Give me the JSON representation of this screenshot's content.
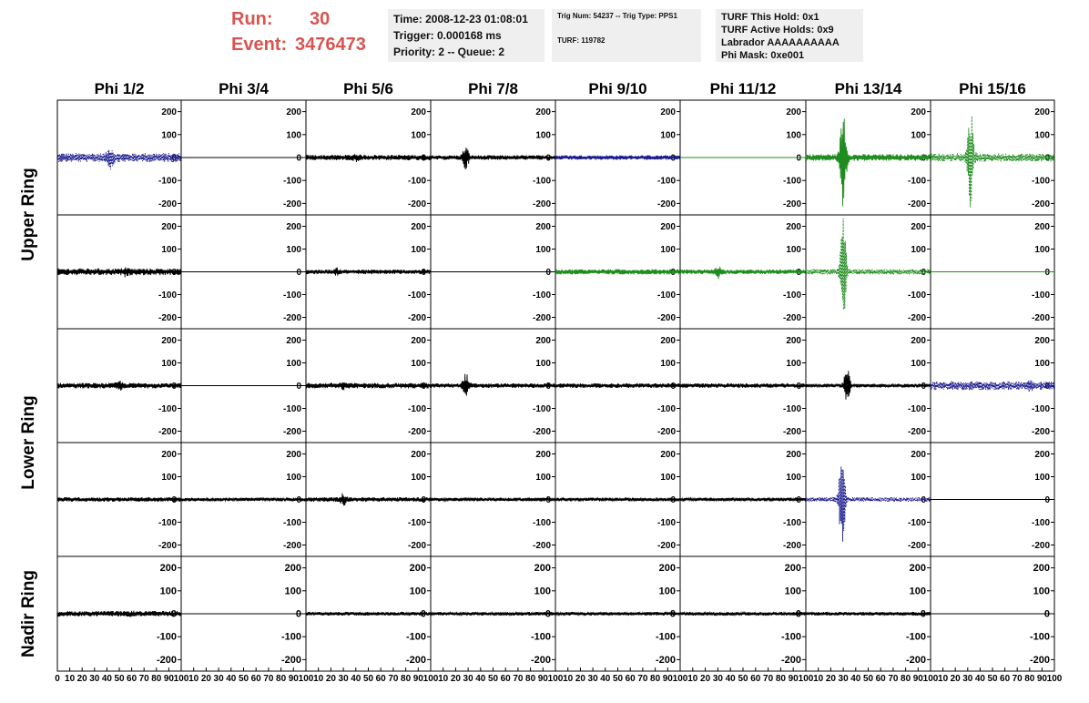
{
  "run": {
    "run_label": "Run:",
    "run_value": "30",
    "event_label": "Event:",
    "event_value": "3476473"
  },
  "header_box1": {
    "time": "Time: 2008-12-23 01:08:01",
    "trigger": "Trigger: 0.000168 ms",
    "priority": "Priority: 2 -- Queue: 2"
  },
  "header_box2": {
    "trig": "Trig Num: 54237 -- Trig Type: PPS1",
    "turf": "TURF: 119782"
  },
  "header_box3": {
    "hold": "TURF This Hold: 0x1",
    "active": "TURF Active Holds: 0x9",
    "labrador": "Labrador AAAAAAAAAA",
    "phimask": "Phi Mask: 0xe001"
  },
  "columns": [
    "Phi 1/2",
    "Phi 3/4",
    "Phi 5/6",
    "Phi 7/8",
    "Phi 9/10",
    "Phi 11/12",
    "Phi 13/14",
    "Phi 15/16"
  ],
  "rows": [
    "Upper Ring",
    "Lower Ring",
    "Nadir Ring"
  ],
  "y_ticks": [
    "200",
    "100",
    "0",
    "-100",
    "-200"
  ],
  "x_ticks": [
    "0",
    "10",
    "20",
    "30",
    "40",
    "50",
    "60",
    "70",
    "80",
    "90",
    "100"
  ],
  "colors": {
    "black": "#000000",
    "blue": "#1a1a8c",
    "green": "#1f8c1f",
    "accent": "#d9534f",
    "panel": "#efefef"
  },
  "chart_data": {
    "type": "line",
    "xlim": [
      0,
      100
    ],
    "ylim": [
      -250,
      250
    ],
    "waveforms": [
      [
        {
          "color": "blue",
          "style": "dashed",
          "amp": 20,
          "peak_at": 43,
          "peak_amp": 55
        },
        {
          "color": "black",
          "style": "flat"
        },
        {
          "color": "black",
          "style": "solid",
          "amp": 12,
          "peak_at": 40,
          "peak_amp": 20
        },
        {
          "color": "black",
          "style": "solid",
          "amp": 10,
          "peak_at": 28,
          "peak_amp": 55
        },
        {
          "color": "blue",
          "style": "solid",
          "amp": 10
        },
        {
          "color": "green",
          "style": "flat"
        },
        {
          "color": "green",
          "style": "solid",
          "amp": 15,
          "peak_at": 30,
          "peak_amp": 240
        },
        {
          "color": "green",
          "style": "dashed",
          "amp": 18,
          "peak_at": 32,
          "peak_amp": 240
        }
      ],
      [
        {
          "color": "black",
          "style": "solid",
          "amp": 15,
          "peak_at": 55,
          "peak_amp": 25
        },
        {
          "color": "black",
          "style": "flat",
          "amp": 1
        },
        {
          "color": "black",
          "style": "solid",
          "amp": 10,
          "peak_at": 25,
          "peak_amp": 20
        },
        {
          "color": "black",
          "style": "flat",
          "amp": 1
        },
        {
          "color": "green",
          "style": "solid",
          "amp": 12
        },
        {
          "color": "green",
          "style": "solid",
          "amp": 10,
          "peak_at": 30,
          "peak_amp": 35
        },
        {
          "color": "green",
          "style": "dashed",
          "amp": 12,
          "peak_at": 30,
          "peak_amp": 240
        },
        {
          "color": "green",
          "style": "flat"
        }
      ],
      [
        {
          "color": "black",
          "style": "solid",
          "amp": 12,
          "peak_at": 50,
          "peak_amp": 25
        },
        {
          "color": "black",
          "style": "flat"
        },
        {
          "color": "black",
          "style": "solid",
          "amp": 12,
          "peak_at": 30,
          "peak_amp": 20
        },
        {
          "color": "black",
          "style": "solid",
          "amp": 10,
          "peak_at": 28,
          "peak_amp": 60
        },
        {
          "color": "black",
          "style": "solid",
          "amp": 10
        },
        {
          "color": "black",
          "style": "solid",
          "amp": 10
        },
        {
          "color": "black",
          "style": "solid",
          "amp": 8,
          "peak_at": 33,
          "peak_amp": 80
        },
        {
          "color": "blue",
          "style": "dashed",
          "amp": 20,
          "peak_at": 80,
          "peak_amp": 30
        }
      ],
      [
        {
          "color": "black",
          "style": "solid",
          "amp": 10
        },
        {
          "color": "black",
          "style": "solid",
          "amp": 8
        },
        {
          "color": "black",
          "style": "solid",
          "amp": 10,
          "peak_at": 30,
          "peak_amp": 30
        },
        {
          "color": "black",
          "style": "solid",
          "amp": 8
        },
        {
          "color": "black",
          "style": "solid",
          "amp": 8
        },
        {
          "color": "black",
          "style": "solid",
          "amp": 8
        },
        {
          "color": "blue",
          "style": "dashed",
          "amp": 10,
          "peak_at": 29,
          "peak_amp": 230
        },
        {
          "color": "black",
          "style": "flat"
        }
      ],
      [
        {
          "color": "black",
          "style": "solid",
          "amp": 12,
          "peak_at": 60,
          "peak_amp": 15
        },
        {
          "color": "black",
          "style": "flat"
        },
        {
          "color": "black",
          "style": "solid",
          "amp": 8
        },
        {
          "color": "black",
          "style": "solid",
          "amp": 8
        },
        {
          "color": "black",
          "style": "solid",
          "amp": 8
        },
        {
          "color": "black",
          "style": "solid",
          "amp": 8
        },
        {
          "color": "black",
          "style": "solid",
          "amp": 8
        },
        {
          "color": "black",
          "style": "flat"
        }
      ]
    ]
  }
}
